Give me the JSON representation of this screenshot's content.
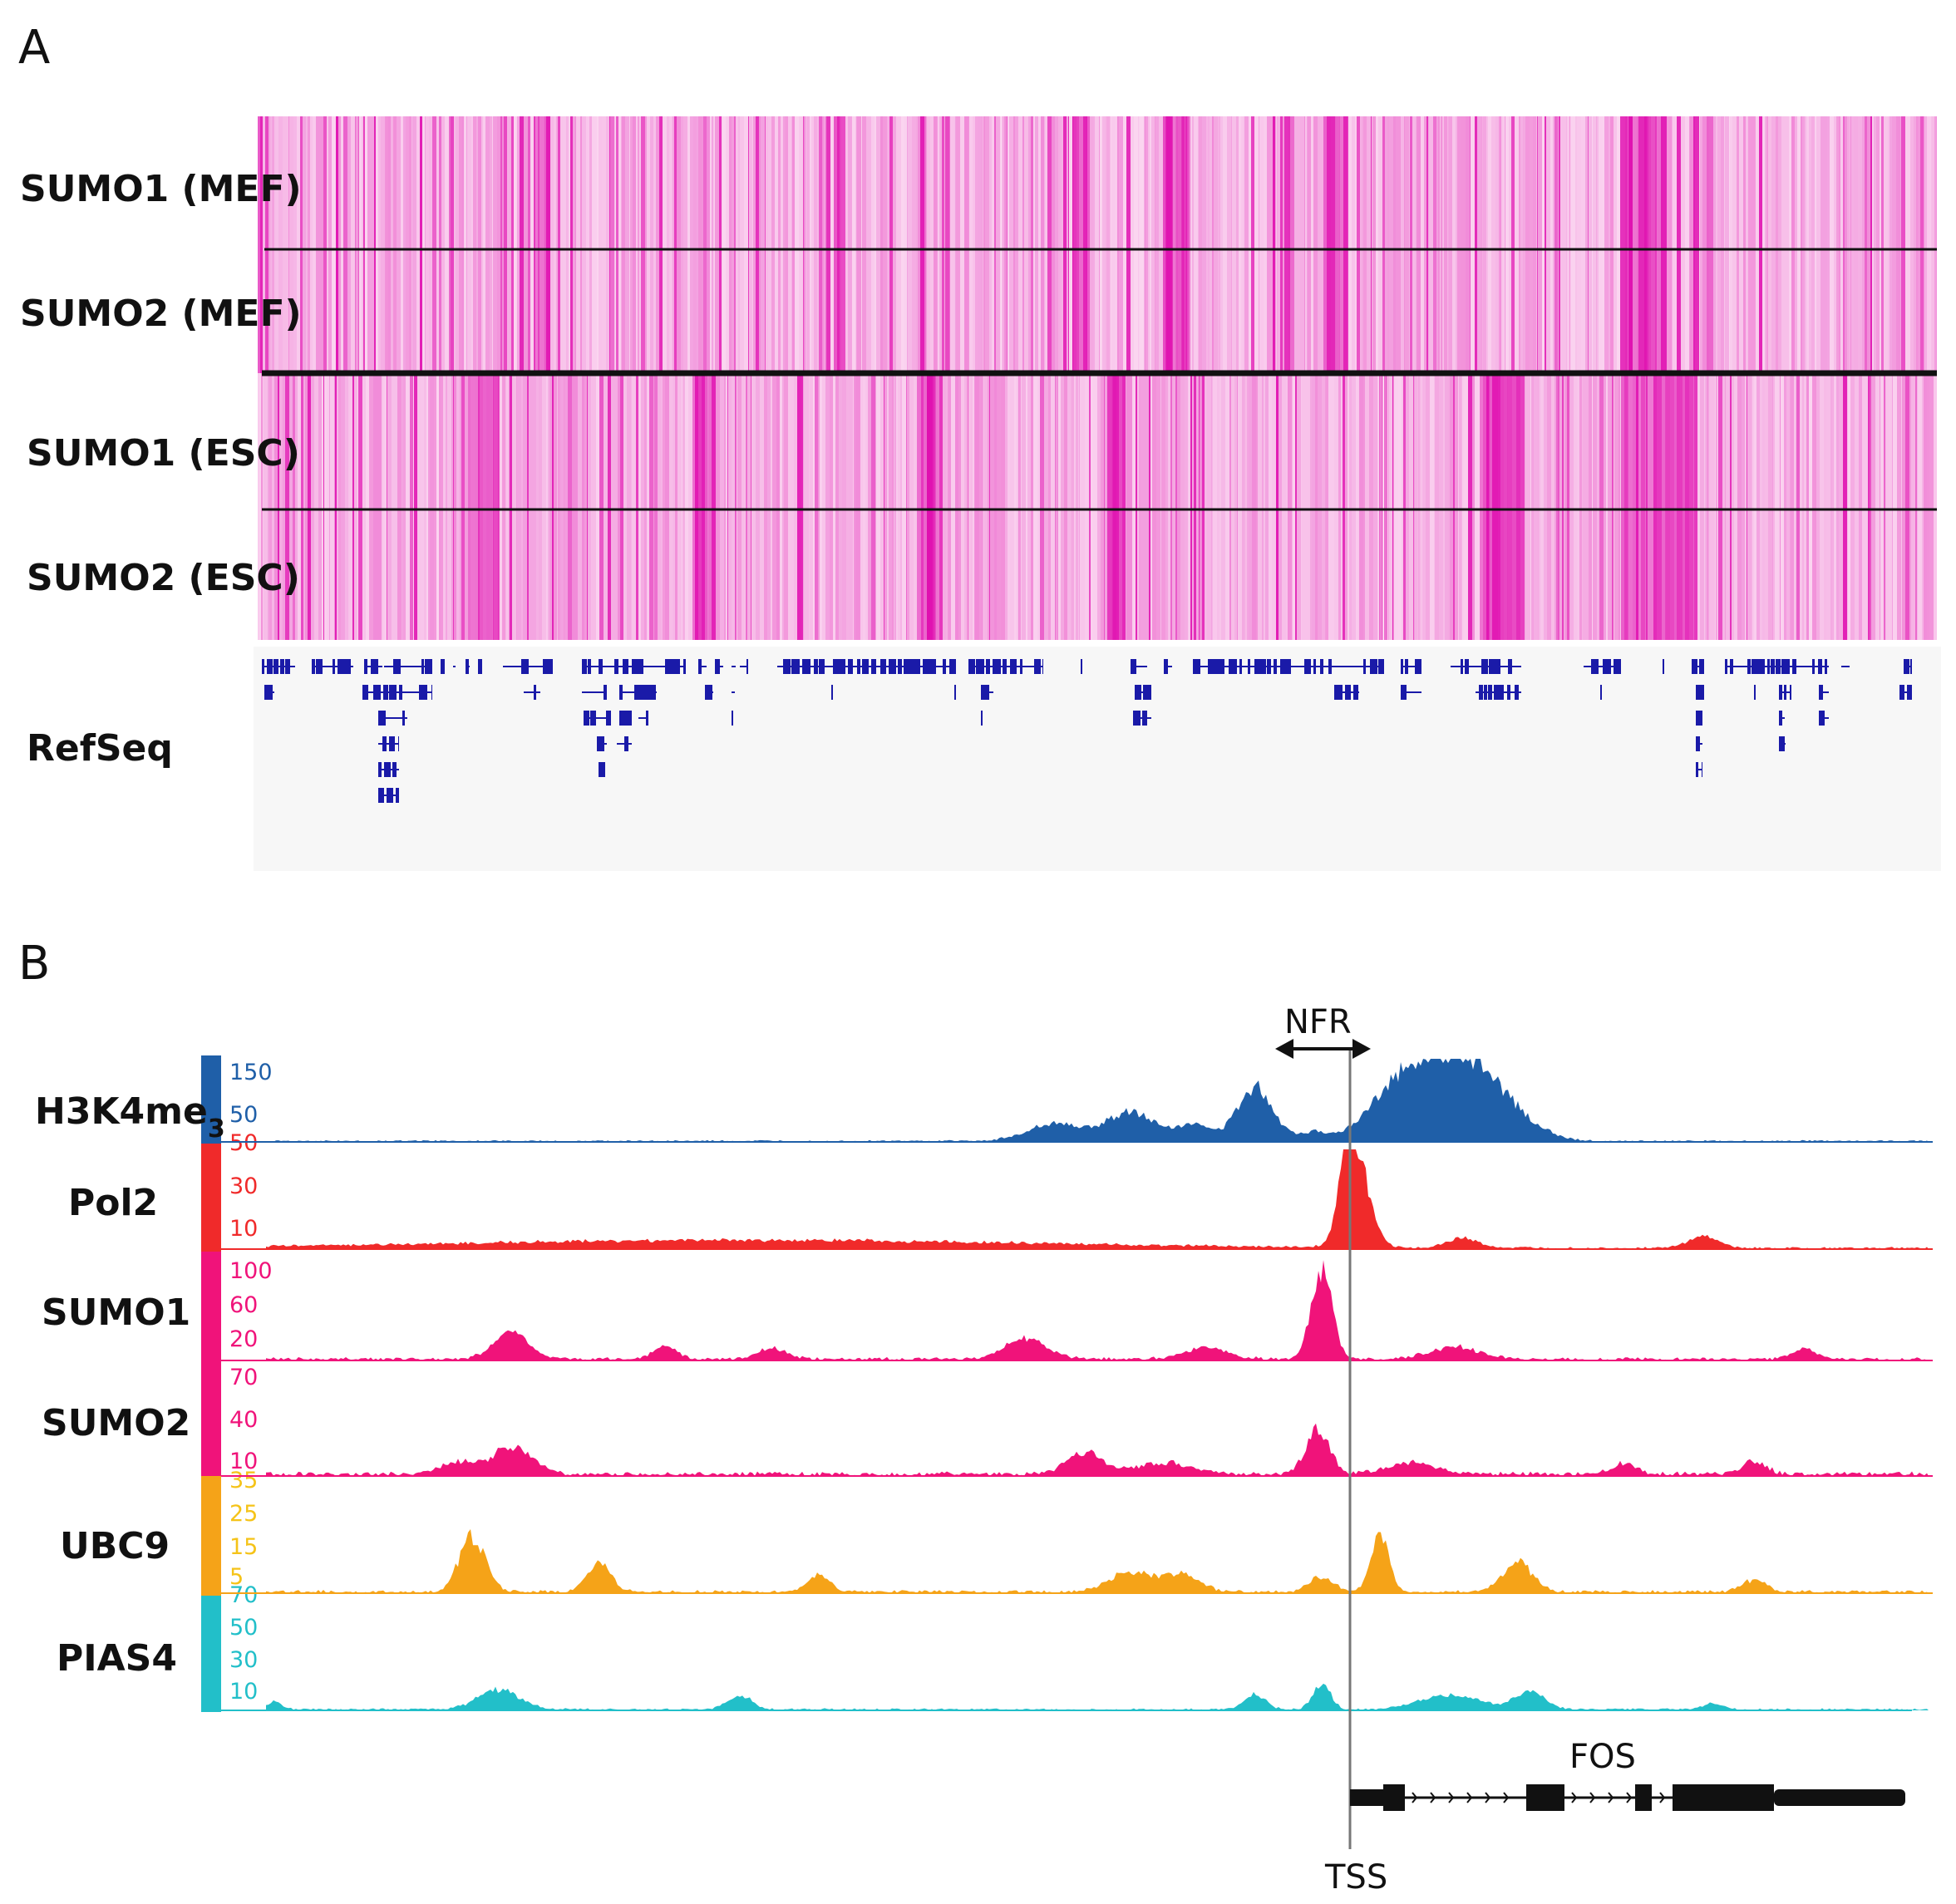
{
  "panelA": {
    "letter": "A",
    "tracks": [
      {
        "label": "SUMO1 (MEF)"
      },
      {
        "label": "SUMO2 (MEF)"
      },
      {
        "label": "SUMO1 (ESC)"
      },
      {
        "label": "SUMO2 (ESC)"
      }
    ],
    "refseq_label": "RefSeq",
    "heatmap_color": "#e010b0",
    "gene_color": "#1a1aa8"
  },
  "panelB": {
    "letter": "B",
    "nfr_label": "NFR",
    "tss_label": "TSS",
    "gene_label": "FOS",
    "tracks": [
      {
        "label": "H3K4me",
        "sub": "3",
        "color": "#1f5fa8",
        "ticks": [
          "150",
          "50"
        ]
      },
      {
        "label": "Pol2",
        "color": "#f02a2a",
        "ticks": [
          "50",
          "30",
          "10"
        ]
      },
      {
        "label": "SUMO1",
        "color": "#f0137a",
        "ticks": [
          "100",
          "60",
          "20"
        ]
      },
      {
        "label": "SUMO2",
        "color": "#f0137a",
        "ticks": [
          "70",
          "40",
          "10"
        ]
      },
      {
        "label": "UBC9",
        "color": "#f5a318",
        "ticks": [
          "35",
          "25",
          "15",
          "5"
        ]
      },
      {
        "label": "PIAS4",
        "color": "#22bfc9",
        "ticks": [
          "70",
          "50",
          "30",
          "10"
        ]
      }
    ]
  }
}
